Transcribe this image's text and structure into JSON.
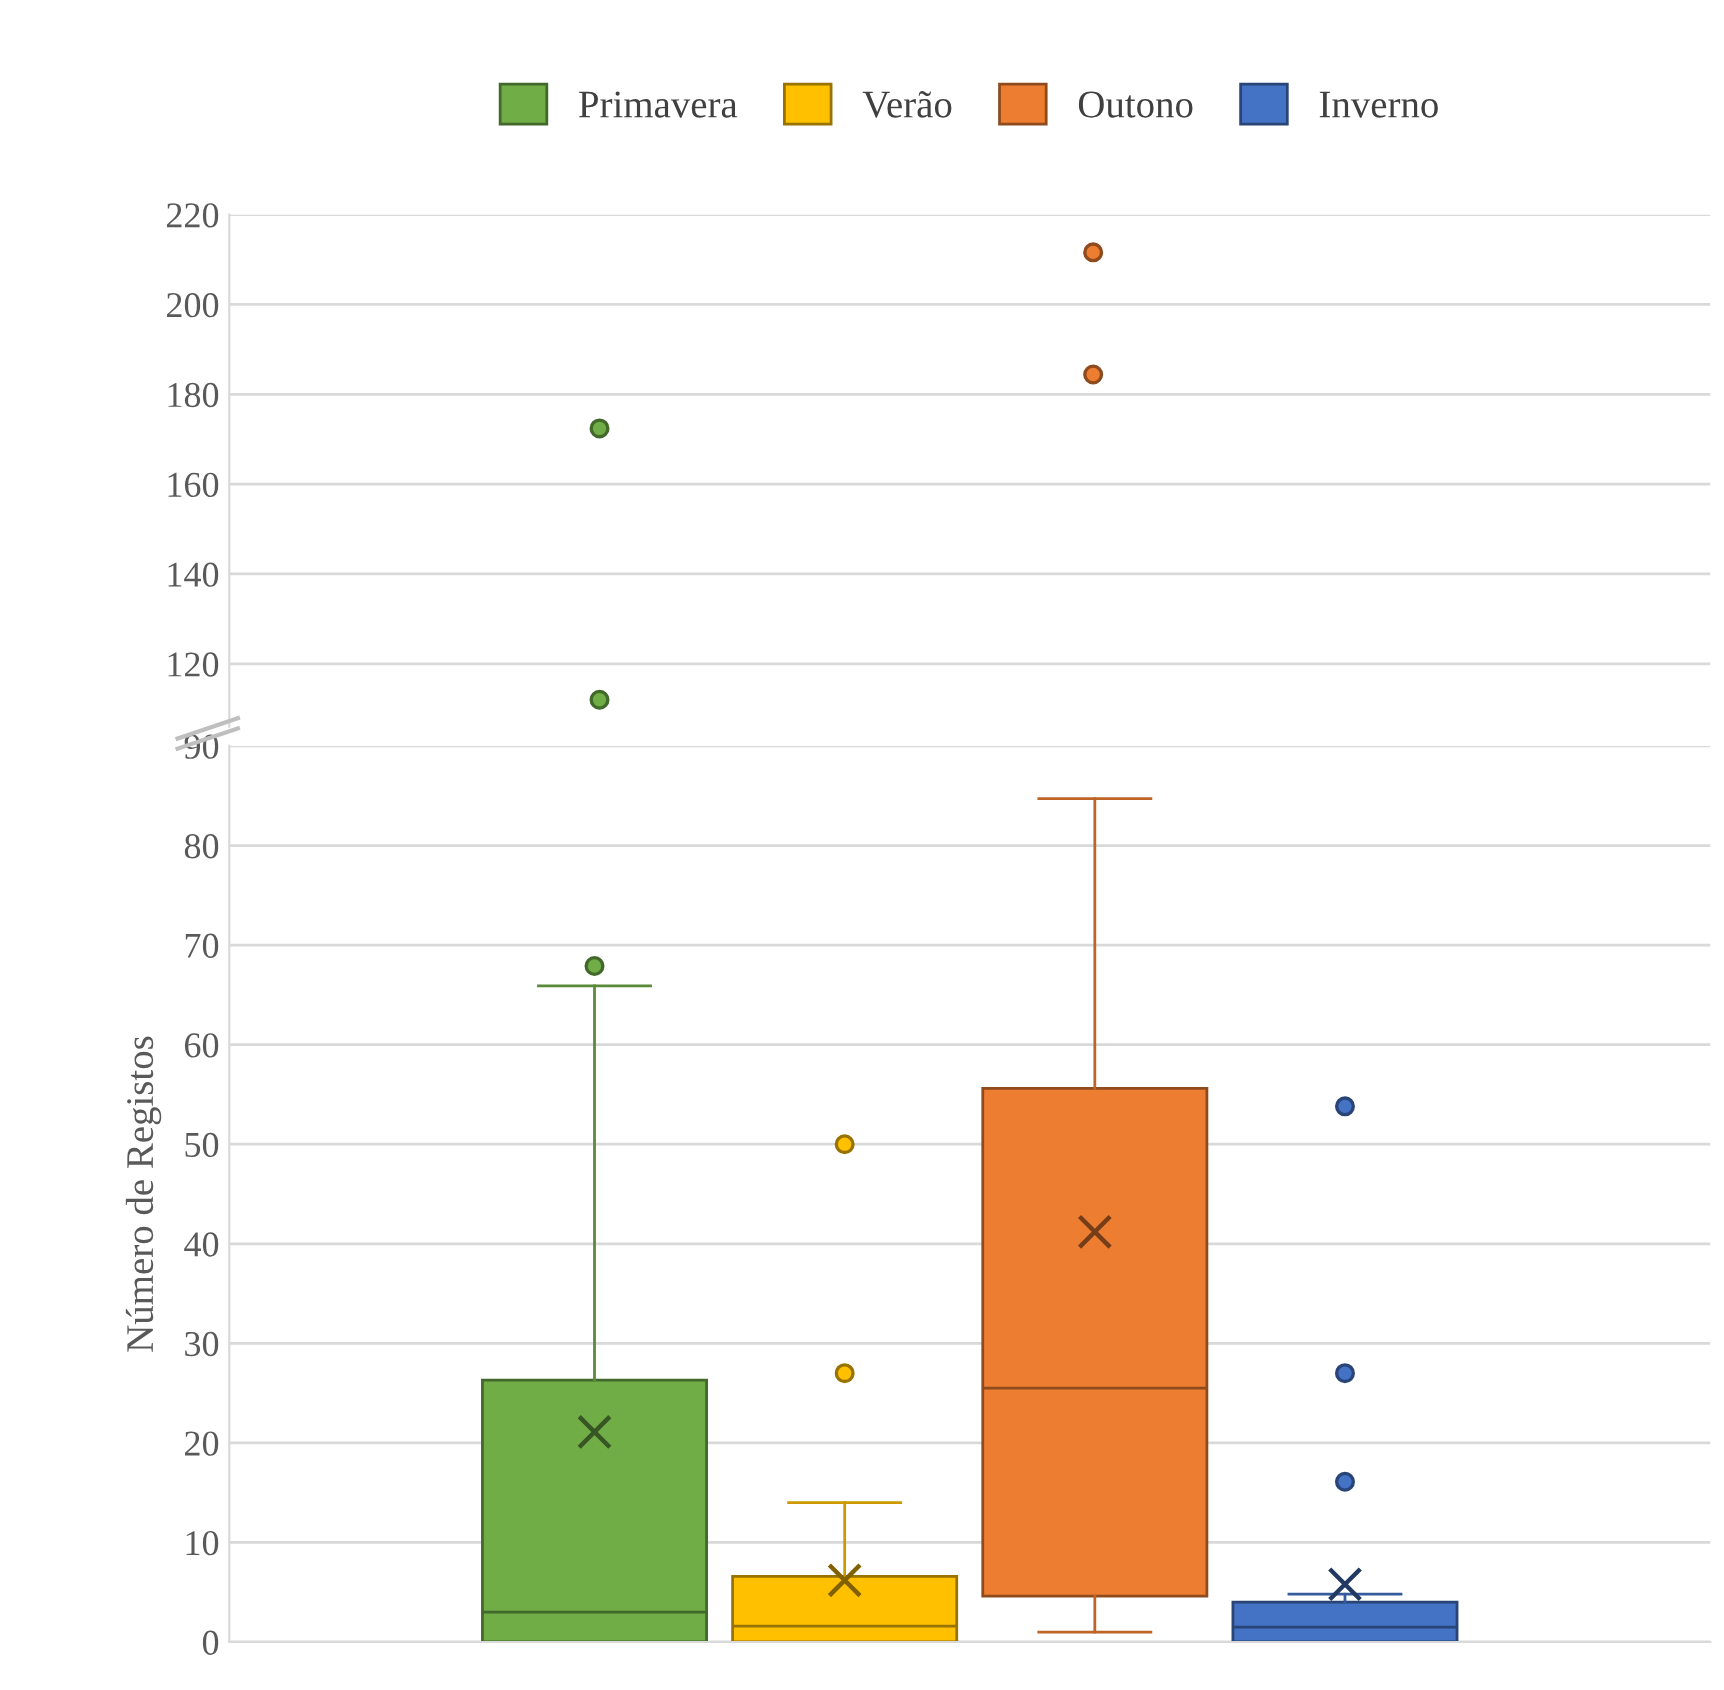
{
  "chart_data": [
    {
      "type": "scatter",
      "categories": [
        null,
        null,
        null,
        null,
        null,
        null
      ],
      "ylim": [
        106,
        220
      ],
      "yticks": [
        120,
        140,
        160,
        180,
        200,
        220
      ],
      "grid": "y",
      "tick_labels": "y",
      "marker": "circle",
      "series": [
        {
          "colors": [
            null,
            "#70ad47",
            "#ffc000",
            "#ed7d31",
            "#4472c4",
            null
          ],
          "values": [
            null,
            112,
            null,
            184.4,
            null,
            null
          ]
        },
        {
          "colors": [
            null,
            "#70ad47",
            "#ffc000",
            "#ed7d31",
            "#4472c4",
            null
          ],
          "values": [
            null,
            172.4,
            null,
            211.6,
            null,
            null
          ]
        }
      ]
    },
    {
      "type": "box",
      "categories": [
        null
      ],
      "ylim": [
        0,
        90
      ],
      "yticks": [
        0,
        10,
        20,
        30,
        40,
        50,
        60,
        70,
        80,
        90
      ],
      "grid": "y",
      "tick_labels": "y",
      "ylabel": "Número de Registos",
      "legend": "top",
      "series": [
        {
          "name": "Primavera",
          "color": "#70ad47",
          "boxes": [
            {
              "low": 0,
              "q1": 0,
              "median": 3,
              "q3": 26.3,
              "high": 65.9,
              "mean": 21.1,
              "outliers": [
                67.9
              ]
            }
          ]
        },
        {
          "name": "Verão",
          "color": "#ffc000",
          "boxes": [
            {
              "low": 0,
              "q1": 0,
              "median": 1.6,
              "q3": 6.6,
              "high": 14,
              "mean": 6.2,
              "outliers": [
                27,
                50
              ]
            }
          ]
        },
        {
          "name": "Outono",
          "color": "#ed7d31",
          "boxes": [
            {
              "low": 1,
              "q1": 4.6,
              "median": 25.5,
              "q3": 55.6,
              "high": 84.7,
              "mean": 41.2
            }
          ]
        },
        {
          "name": "Inverno",
          "color": "#4472c4",
          "boxes": [
            {
              "low": 0,
              "q1": 0,
              "median": 1.5,
              "q3": 4,
              "high": 4.8,
              "mean": 5.8,
              "outliers": [
                16.1,
                27,
                53.8
              ]
            }
          ]
        }
      ]
    }
  ]
}
